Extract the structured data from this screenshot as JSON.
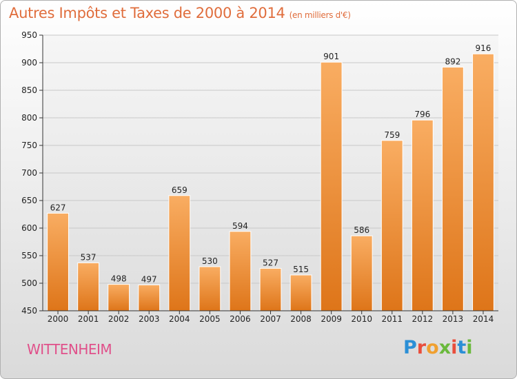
{
  "header": {
    "title": "Autres Impôts et Taxes de 2000 à 2014",
    "unit": "(en milliers d'€)"
  },
  "footer": {
    "city": "WITTENHEIM",
    "logo": [
      "P",
      "r",
      "o",
      "x",
      "i",
      "t",
      "i"
    ]
  },
  "colors": {
    "bar_light": "#f7a85a",
    "bar_dark": "#e0781e",
    "title": "#e06d3c",
    "city": "#e0508a"
  },
  "chart_data": {
    "type": "bar",
    "title": "Autres Impôts et Taxes de 2000 à 2014",
    "subtitle": "(en milliers d'€)",
    "categories": [
      "2000",
      "2001",
      "2002",
      "2003",
      "2004",
      "2005",
      "2006",
      "2007",
      "2008",
      "2009",
      "2010",
      "2011",
      "2012",
      "2013",
      "2014"
    ],
    "values": [
      627,
      537,
      498,
      497,
      659,
      530,
      594,
      527,
      515,
      901,
      586,
      759,
      796,
      892,
      916
    ],
    "ylim": [
      450,
      950
    ],
    "yticks": [
      450,
      500,
      550,
      600,
      650,
      700,
      750,
      800,
      850,
      900,
      950
    ],
    "grid": true,
    "xlabel": "",
    "ylabel": ""
  }
}
